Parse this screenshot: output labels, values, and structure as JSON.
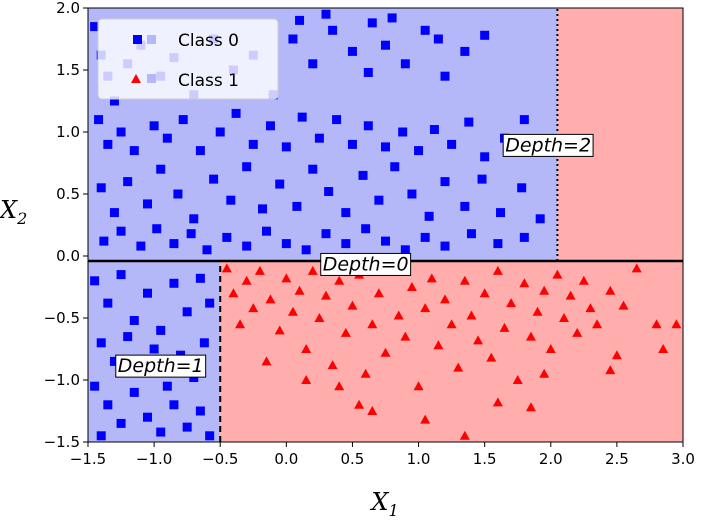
{
  "chart_data": {
    "type": "scatter",
    "title": "",
    "xlabel": "X",
    "xlabel_sub": "1",
    "ylabel": "X",
    "ylabel_sub": "2",
    "xlim": [
      -1.5,
      3.0
    ],
    "ylim": [
      -1.5,
      2.0
    ],
    "xticks": [
      -1.5,
      -1.0,
      -0.5,
      0.0,
      0.5,
      1.0,
      1.5,
      2.0,
      2.5,
      3.0
    ],
    "xtick_labels": [
      "−1.5",
      "−1.0",
      "−0.5",
      "0.0",
      "0.5",
      "1.0",
      "1.5",
      "2.0",
      "2.5",
      "3.0"
    ],
    "yticks": [
      -1.5,
      -1.0,
      -0.5,
      0.0,
      0.5,
      1.0,
      1.5,
      2.0
    ],
    "ytick_labels": [
      "−1.5",
      "−1.0",
      "−0.5",
      "0.0",
      "0.5",
      "1.0",
      "1.5",
      "2.0"
    ],
    "grid": false,
    "legend_position": "top-left",
    "regions": [
      {
        "class": "0",
        "x": [
          -1.5,
          2.05
        ],
        "y": [
          -0.04,
          2.0
        ],
        "color": "#b4b8f8"
      },
      {
        "class": "1",
        "x": [
          2.05,
          3.0
        ],
        "y": [
          -0.04,
          2.0
        ],
        "color": "#ffadad"
      },
      {
        "class": "0",
        "x": [
          -1.5,
          -0.5
        ],
        "y": [
          -1.5,
          -0.04
        ],
        "color": "#b4b8f8"
      },
      {
        "class": "1",
        "x": [
          -0.5,
          3.0
        ],
        "y": [
          -1.5,
          -0.04
        ],
        "color": "#ffadad"
      }
    ],
    "boundaries": [
      {
        "label": "Depth=0",
        "orientation": "horizontal",
        "value": -0.04,
        "from": -1.5,
        "to": 3.0,
        "style": "solid",
        "label_x": 0.6,
        "label_y": -0.06
      },
      {
        "label": "Depth=1",
        "orientation": "vertical",
        "value": -0.5,
        "from": -1.5,
        "to": -0.04,
        "style": "dashed",
        "label_x": -0.95,
        "label_y": -0.88
      },
      {
        "label": "Depth=2",
        "orientation": "vertical",
        "value": 2.05,
        "from": -0.04,
        "to": 2.0,
        "style": "dotted",
        "label_x": 1.98,
        "label_y": 0.9
      }
    ],
    "series": [
      {
        "name": "Class 0",
        "marker": "square",
        "color": "#0000ff",
        "points": [
          [
            -1.45,
            1.85
          ],
          [
            -1.4,
            1.62
          ],
          [
            -1.35,
            1.45
          ],
          [
            -1.42,
            1.1
          ],
          [
            -1.3,
            1.25
          ],
          [
            -1.2,
            1.55
          ],
          [
            -1.1,
            1.7
          ],
          [
            -0.95,
            1.45
          ],
          [
            -0.85,
            1.6
          ],
          [
            -0.7,
            1.3
          ],
          [
            -0.55,
            1.75
          ],
          [
            -0.4,
            1.5
          ],
          [
            -0.25,
            1.62
          ],
          [
            -0.1,
            1.3
          ],
          [
            0.05,
            1.75
          ],
          [
            0.2,
            1.55
          ],
          [
            0.35,
            1.82
          ],
          [
            0.5,
            1.65
          ],
          [
            0.62,
            1.48
          ],
          [
            0.75,
            1.7
          ],
          [
            0.9,
            1.55
          ],
          [
            1.05,
            1.82
          ],
          [
            1.2,
            1.45
          ],
          [
            1.35,
            1.65
          ],
          [
            1.5,
            1.78
          ],
          [
            0.3,
            1.95
          ],
          [
            0.1,
            1.9
          ],
          [
            0.65,
            1.88
          ],
          [
            0.8,
            1.92
          ],
          [
            1.15,
            1.75
          ],
          [
            -1.35,
            0.9
          ],
          [
            -1.25,
            1.0
          ],
          [
            -1.15,
            0.85
          ],
          [
            -1.0,
            1.05
          ],
          [
            -0.9,
            0.95
          ],
          [
            -0.78,
            1.1
          ],
          [
            -0.65,
            0.85
          ],
          [
            -0.5,
            1.0
          ],
          [
            -0.38,
            1.15
          ],
          [
            -0.25,
            0.9
          ],
          [
            -0.12,
            1.05
          ],
          [
            0.0,
            0.88
          ],
          [
            0.12,
            1.12
          ],
          [
            0.25,
            0.95
          ],
          [
            0.38,
            1.1
          ],
          [
            0.5,
            0.9
          ],
          [
            0.62,
            1.05
          ],
          [
            0.75,
            0.88
          ],
          [
            0.88,
            1.0
          ],
          [
            1.0,
            0.85
          ],
          [
            1.12,
            1.02
          ],
          [
            1.25,
            0.9
          ],
          [
            1.38,
            1.08
          ],
          [
            1.5,
            0.8
          ],
          [
            1.65,
            0.95
          ],
          [
            1.8,
            1.1
          ],
          [
            1.95,
            0.9
          ],
          [
            -1.4,
            0.55
          ],
          [
            -1.3,
            0.35
          ],
          [
            -1.2,
            0.6
          ],
          [
            -1.05,
            0.42
          ],
          [
            -0.95,
            0.7
          ],
          [
            -0.82,
            0.5
          ],
          [
            -0.7,
            0.3
          ],
          [
            -0.55,
            0.62
          ],
          [
            -0.42,
            0.45
          ],
          [
            -0.3,
            0.72
          ],
          [
            -0.18,
            0.38
          ],
          [
            -0.05,
            0.58
          ],
          [
            0.08,
            0.4
          ],
          [
            0.2,
            0.7
          ],
          [
            0.32,
            0.52
          ],
          [
            0.45,
            0.35
          ],
          [
            0.58,
            0.65
          ],
          [
            0.7,
            0.45
          ],
          [
            0.82,
            0.72
          ],
          [
            0.95,
            0.5
          ],
          [
            1.08,
            0.32
          ],
          [
            1.2,
            0.6
          ],
          [
            1.35,
            0.4
          ],
          [
            1.48,
            0.62
          ],
          [
            1.62,
            0.35
          ],
          [
            1.78,
            0.55
          ],
          [
            1.92,
            0.3
          ],
          [
            -1.38,
            0.12
          ],
          [
            -1.25,
            0.2
          ],
          [
            -1.1,
            0.08
          ],
          [
            -0.98,
            0.22
          ],
          [
            -0.85,
            0.1
          ],
          [
            -0.72,
            0.18
          ],
          [
            -0.6,
            0.05
          ],
          [
            -0.45,
            0.15
          ],
          [
            -0.3,
            0.08
          ],
          [
            -0.15,
            0.2
          ],
          [
            0.0,
            0.1
          ],
          [
            0.15,
            0.05
          ],
          [
            0.3,
            0.18
          ],
          [
            0.45,
            0.1
          ],
          [
            0.6,
            0.22
          ],
          [
            0.75,
            0.12
          ],
          [
            0.9,
            0.05
          ],
          [
            1.05,
            0.15
          ],
          [
            1.2,
            0.08
          ],
          [
            1.4,
            0.18
          ],
          [
            1.6,
            0.1
          ],
          [
            1.8,
            0.15
          ],
          [
            -1.45,
            -0.2
          ],
          [
            -1.35,
            -0.38
          ],
          [
            -1.25,
            -0.15
          ],
          [
            -1.15,
            -0.52
          ],
          [
            -1.05,
            -0.3
          ],
          [
            -0.95,
            -0.6
          ],
          [
            -0.85,
            -0.22
          ],
          [
            -0.75,
            -0.45
          ],
          [
            -0.65,
            -0.18
          ],
          [
            -0.58,
            -0.38
          ],
          [
            -1.4,
            -0.7
          ],
          [
            -1.3,
            -0.85
          ],
          [
            -1.2,
            -0.65
          ],
          [
            -1.1,
            -0.92
          ],
          [
            -1.0,
            -0.75
          ],
          [
            -0.9,
            -1.05
          ],
          [
            -0.8,
            -0.8
          ],
          [
            -0.7,
            -0.98
          ],
          [
            -0.62,
            -0.7
          ],
          [
            -1.45,
            -1.05
          ],
          [
            -1.35,
            -1.2
          ],
          [
            -1.25,
            -1.35
          ],
          [
            -1.15,
            -1.1
          ],
          [
            -1.05,
            -1.3
          ],
          [
            -0.95,
            -1.42
          ],
          [
            -0.85,
            -1.2
          ],
          [
            -0.75,
            -1.38
          ],
          [
            -0.65,
            -1.25
          ],
          [
            -0.58,
            -1.45
          ],
          [
            -1.4,
            -1.45
          ]
        ]
      },
      {
        "name": "Class 1",
        "marker": "triangle",
        "color": "#ff0000",
        "points": [
          [
            -0.45,
            -0.1
          ],
          [
            -0.4,
            -0.3
          ],
          [
            -0.35,
            -0.55
          ],
          [
            -0.3,
            -0.2
          ],
          [
            -0.25,
            -0.42
          ],
          [
            -0.2,
            -0.12
          ],
          [
            -0.12,
            -0.35
          ],
          [
            -0.05,
            -0.6
          ],
          [
            0.0,
            -0.18
          ],
          [
            0.05,
            -0.45
          ],
          [
            0.1,
            -0.28
          ],
          [
            0.15,
            -0.75
          ],
          [
            0.2,
            -0.12
          ],
          [
            0.25,
            -0.5
          ],
          [
            0.3,
            -0.32
          ],
          [
            0.35,
            -0.88
          ],
          [
            0.4,
            -0.2
          ],
          [
            0.45,
            -0.62
          ],
          [
            0.5,
            -0.4
          ],
          [
            0.55,
            -0.15
          ],
          [
            0.6,
            -0.95
          ],
          [
            0.65,
            -0.55
          ],
          [
            0.7,
            -0.3
          ],
          [
            0.75,
            -0.78
          ],
          [
            0.8,
            -0.12
          ],
          [
            0.85,
            -0.48
          ],
          [
            0.9,
            -0.65
          ],
          [
            0.95,
            -0.25
          ],
          [
            1.0,
            -1.05
          ],
          [
            1.05,
            -0.42
          ],
          [
            1.1,
            -0.18
          ],
          [
            1.15,
            -0.72
          ],
          [
            1.2,
            -0.35
          ],
          [
            1.25,
            -0.55
          ],
          [
            1.3,
            -0.9
          ],
          [
            1.35,
            -0.2
          ],
          [
            1.4,
            -0.48
          ],
          [
            1.45,
            -0.68
          ],
          [
            1.5,
            -0.3
          ],
          [
            1.55,
            -0.82
          ],
          [
            1.6,
            -0.12
          ],
          [
            1.65,
            -0.58
          ],
          [
            1.7,
            -0.38
          ],
          [
            1.75,
            -1.0
          ],
          [
            1.8,
            -0.22
          ],
          [
            1.85,
            -0.65
          ],
          [
            1.9,
            -0.45
          ],
          [
            1.95,
            -0.28
          ],
          [
            2.0,
            -0.75
          ],
          [
            2.05,
            -0.15
          ],
          [
            2.1,
            -0.5
          ],
          [
            2.15,
            -0.32
          ],
          [
            2.2,
            -0.62
          ],
          [
            2.25,
            -0.2
          ],
          [
            2.3,
            -0.42
          ],
          [
            2.35,
            -0.55
          ],
          [
            2.45,
            -0.28
          ],
          [
            2.55,
            -0.4
          ],
          [
            2.65,
            -0.1
          ],
          [
            2.8,
            -0.55
          ],
          [
            2.85,
            -0.75
          ],
          [
            2.95,
            -0.55
          ],
          [
            2.5,
            -0.8
          ],
          [
            0.4,
            -1.05
          ],
          [
            0.65,
            -1.25
          ],
          [
            1.05,
            -1.32
          ],
          [
            1.6,
            -1.18
          ],
          [
            1.95,
            -0.95
          ],
          [
            2.45,
            -0.92
          ],
          [
            1.35,
            -1.45
          ],
          [
            0.55,
            -1.2
          ],
          [
            1.85,
            -1.22
          ],
          [
            0.15,
            -1.0
          ],
          [
            -0.15,
            -0.85
          ]
        ]
      }
    ]
  }
}
